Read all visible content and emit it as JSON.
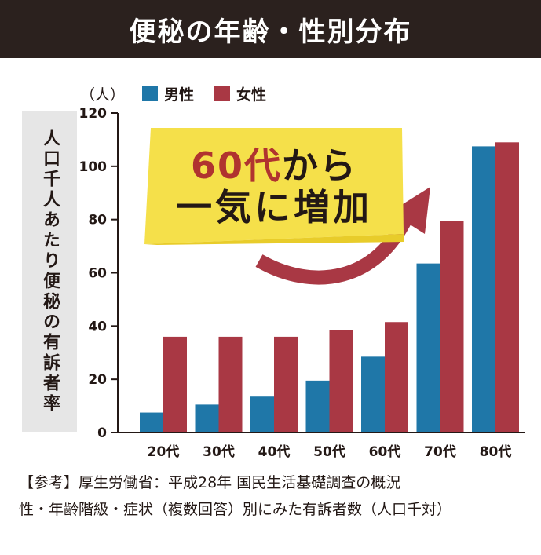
{
  "header": {
    "title": "便秘の年齢・性別分布"
  },
  "chart_data": {
    "type": "bar",
    "unit": "（人）",
    "ylabel": "人口千人あたり便秘の有訴者率",
    "categories": [
      "20代",
      "30代",
      "40代",
      "50代",
      "60代",
      "70代",
      "80代"
    ],
    "series": [
      {
        "name": "男性",
        "color": "#1f77a8",
        "values": [
          7.5,
          10.5,
          13.5,
          19.5,
          28.5,
          63.5,
          107.5
        ]
      },
      {
        "name": "女性",
        "color": "#a93844",
        "values": [
          36,
          36,
          36,
          38.5,
          41.5,
          79.5,
          109
        ]
      }
    ],
    "yticks": [
      0,
      20,
      40,
      60,
      80,
      100,
      120
    ],
    "ylim": [
      0,
      120
    ],
    "legend": "top-left",
    "grid": false
  },
  "callout": {
    "number": "60代",
    "line1_rest": "から",
    "line2": "一気に増加"
  },
  "footer": {
    "line1": "【参考】厚生労働省：平成28年 国民生活基礎調査の概況",
    "line2": "性・年齢階級・症状（複数回答）別にみた有訴者数（人口千対）"
  }
}
